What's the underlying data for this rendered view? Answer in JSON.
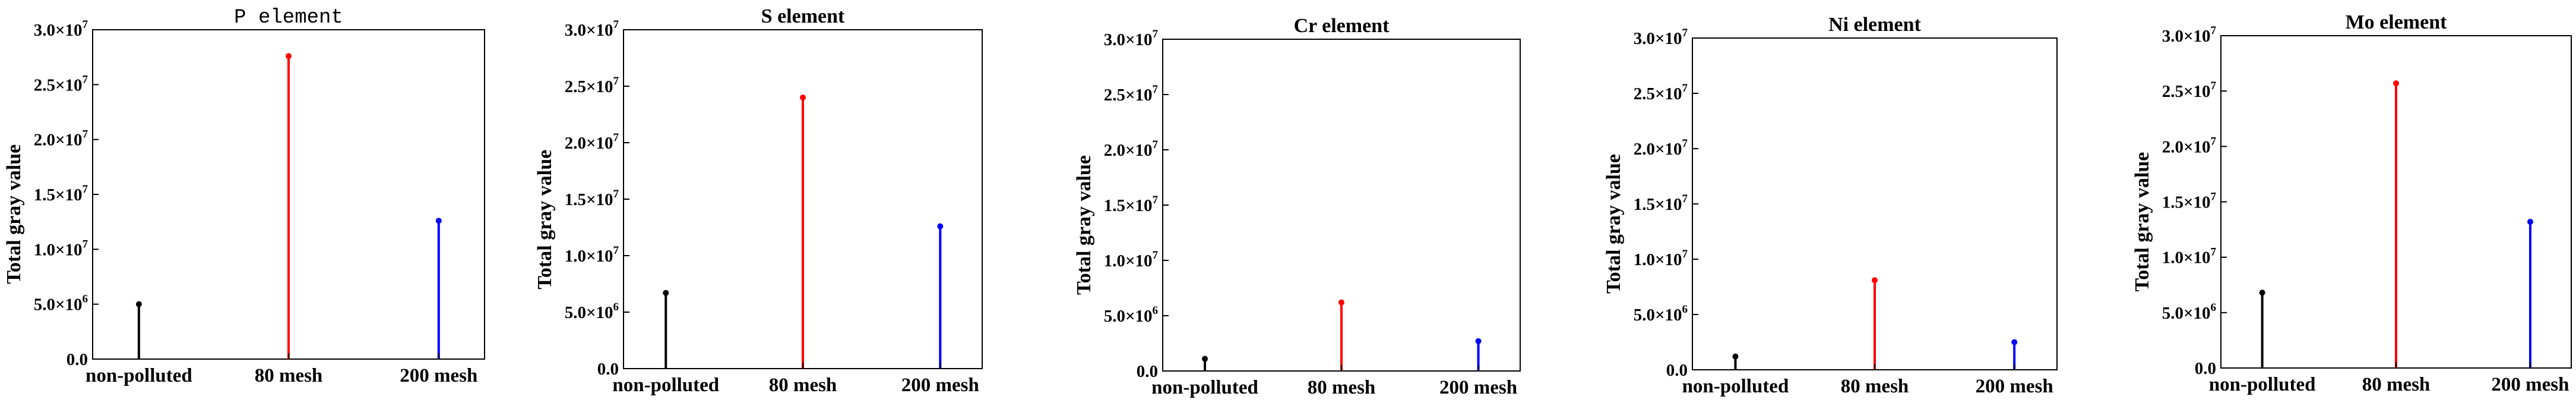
{
  "chart_data": [
    {
      "type": "bar",
      "title": "P element",
      "ylabel": "Total gray value",
      "xlabel": "",
      "ylim": [
        0,
        30000000
      ],
      "yticks": [
        "0.0",
        "5.0×10^6",
        "1.0×10^7",
        "1.5×10^7",
        "2.0×10^7",
        "2.5×10^7",
        "3.0×10^7"
      ],
      "categories": [
        "non-polluted",
        "80 mesh",
        "200 mesh"
      ],
      "values": [
        5000000,
        27600000,
        12600000
      ],
      "colors": [
        "#000000",
        "#ff0000",
        "#0000ff"
      ]
    },
    {
      "type": "bar",
      "title": "S element",
      "ylabel": "Total gray value",
      "xlabel": "",
      "ylim": [
        0,
        30000000
      ],
      "yticks": [
        "0.0",
        "5.0×10^6",
        "1.0×10^7",
        "1.5×10^7",
        "2.0×10^7",
        "2.5×10^7",
        "3.0×10^7"
      ],
      "categories": [
        "non-polluted",
        "80 mesh",
        "200 mesh"
      ],
      "values": [
        6700000,
        24000000,
        12600000
      ],
      "colors": [
        "#000000",
        "#ff0000",
        "#0000ff"
      ]
    },
    {
      "type": "bar",
      "title": "Cr element",
      "ylabel": "Total gray value",
      "xlabel": "",
      "ylim": [
        0,
        30000000
      ],
      "yticks": [
        "0.0",
        "5.0×10^6",
        "1.0×10^7",
        "1.5×10^7",
        "2.0×10^7",
        "2.5×10^7",
        "3.0×10^7"
      ],
      "categories": [
        "non-polluted",
        "80 mesh",
        "200 mesh"
      ],
      "values": [
        1100000,
        6200000,
        2700000
      ],
      "colors": [
        "#000000",
        "#ff0000",
        "#0000ff"
      ]
    },
    {
      "type": "bar",
      "title": "Ni element",
      "ylabel": "Total gray value",
      "xlabel": "",
      "ylim": [
        0,
        30000000
      ],
      "yticks": [
        "0.0",
        "5.0×10^6",
        "1.0×10^7",
        "1.5×10^7",
        "2.0×10^7",
        "2.5×10^7",
        "3.0×10^7"
      ],
      "categories": [
        "non-polluted",
        "80 mesh",
        "200 mesh"
      ],
      "values": [
        1200000,
        8100000,
        2500000
      ],
      "colors": [
        "#000000",
        "#ff0000",
        "#0000ff"
      ]
    },
    {
      "type": "bar",
      "title": "Mo element",
      "ylabel": "Total gray value",
      "xlabel": "",
      "ylim": [
        0,
        30000000
      ],
      "yticks": [
        "0.0",
        "5.0×10^6",
        "1.0×10^7",
        "1.5×10^7",
        "2.0×10^7",
        "2.5×10^7",
        "3.0×10^7"
      ],
      "categories": [
        "non-polluted",
        "80 mesh",
        "200 mesh"
      ],
      "values": [
        6800000,
        25700000,
        13200000
      ],
      "colors": [
        "#000000",
        "#ff0000",
        "#0000ff"
      ]
    }
  ]
}
